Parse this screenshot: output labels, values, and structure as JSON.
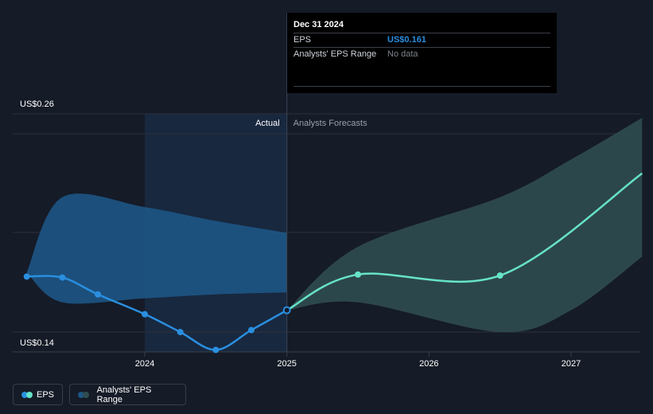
{
  "chart_data": {
    "type": "line",
    "y_axis": {
      "max_label": "US$0.26",
      "min_label": "US$0.14",
      "min": 0.14,
      "max": 0.26
    },
    "x_ticks": [
      {
        "label": "2024",
        "x": 2024.0
      },
      {
        "label": "2025",
        "x": 2025.0
      },
      {
        "label": "2026",
        "x": 2026.0
      },
      {
        "label": "2027",
        "x": 2027.0
      }
    ],
    "x_range": [
      2022.83,
      2027.5
    ],
    "sections": {
      "actual": "Actual",
      "forecast": "Analysts Forecasts"
    },
    "divider_x": 2025.0,
    "series": [
      {
        "name": "EPS",
        "actual_points": [
          [
            2023.17,
            0.178
          ],
          [
            2023.42,
            0.1775
          ],
          [
            2023.67,
            0.169
          ],
          [
            2024.0,
            0.159
          ],
          [
            2024.25,
            0.15
          ],
          [
            2024.5,
            0.141
          ],
          [
            2024.75,
            0.151
          ],
          [
            2025.0,
            0.161
          ]
        ],
        "forecast_points": [
          [
            2025.0,
            0.161
          ],
          [
            2025.5,
            0.179
          ],
          [
            2026.5,
            0.1785
          ],
          [
            2027.5,
            0.23
          ]
        ]
      }
    ],
    "range_actual": {
      "upper": [
        [
          2023.17,
          0.18
        ],
        [
          2023.42,
          0.218
        ],
        [
          2024.0,
          0.213
        ],
        [
          2024.5,
          0.206
        ],
        [
          2025.0,
          0.2
        ]
      ],
      "lower": [
        [
          2023.17,
          0.18
        ],
        [
          2023.42,
          0.165
        ],
        [
          2024.0,
          0.167
        ],
        [
          2024.5,
          0.169
        ],
        [
          2025.0,
          0.17
        ]
      ]
    },
    "range_forecast": {
      "upper": [
        [
          2025.0,
          0.161
        ],
        [
          2025.5,
          0.193
        ],
        [
          2026.5,
          0.218
        ],
        [
          2027.0,
          0.237
        ],
        [
          2027.5,
          0.258
        ]
      ],
      "lower": [
        [
          2025.0,
          0.161
        ],
        [
          2025.5,
          0.165
        ],
        [
          2026.5,
          0.15
        ],
        [
          2027.0,
          0.161
        ],
        [
          2027.5,
          0.188
        ]
      ]
    },
    "colors": {
      "background": "#151b27",
      "actual_shade": "#18283f",
      "eps_actual": "#2a8fe0",
      "eps_forecast": "#66e3c8",
      "range_actual": "#1d5585",
      "range_forecast": "#2f4d50"
    }
  },
  "tooltip": {
    "date": "Dec 31 2024",
    "rows": [
      {
        "key": "EPS",
        "value": "US$0.161"
      },
      {
        "key": "Analysts' EPS Range",
        "value": "No data"
      }
    ]
  },
  "legend": {
    "eps": "EPS",
    "range": "Analysts' EPS Range"
  }
}
